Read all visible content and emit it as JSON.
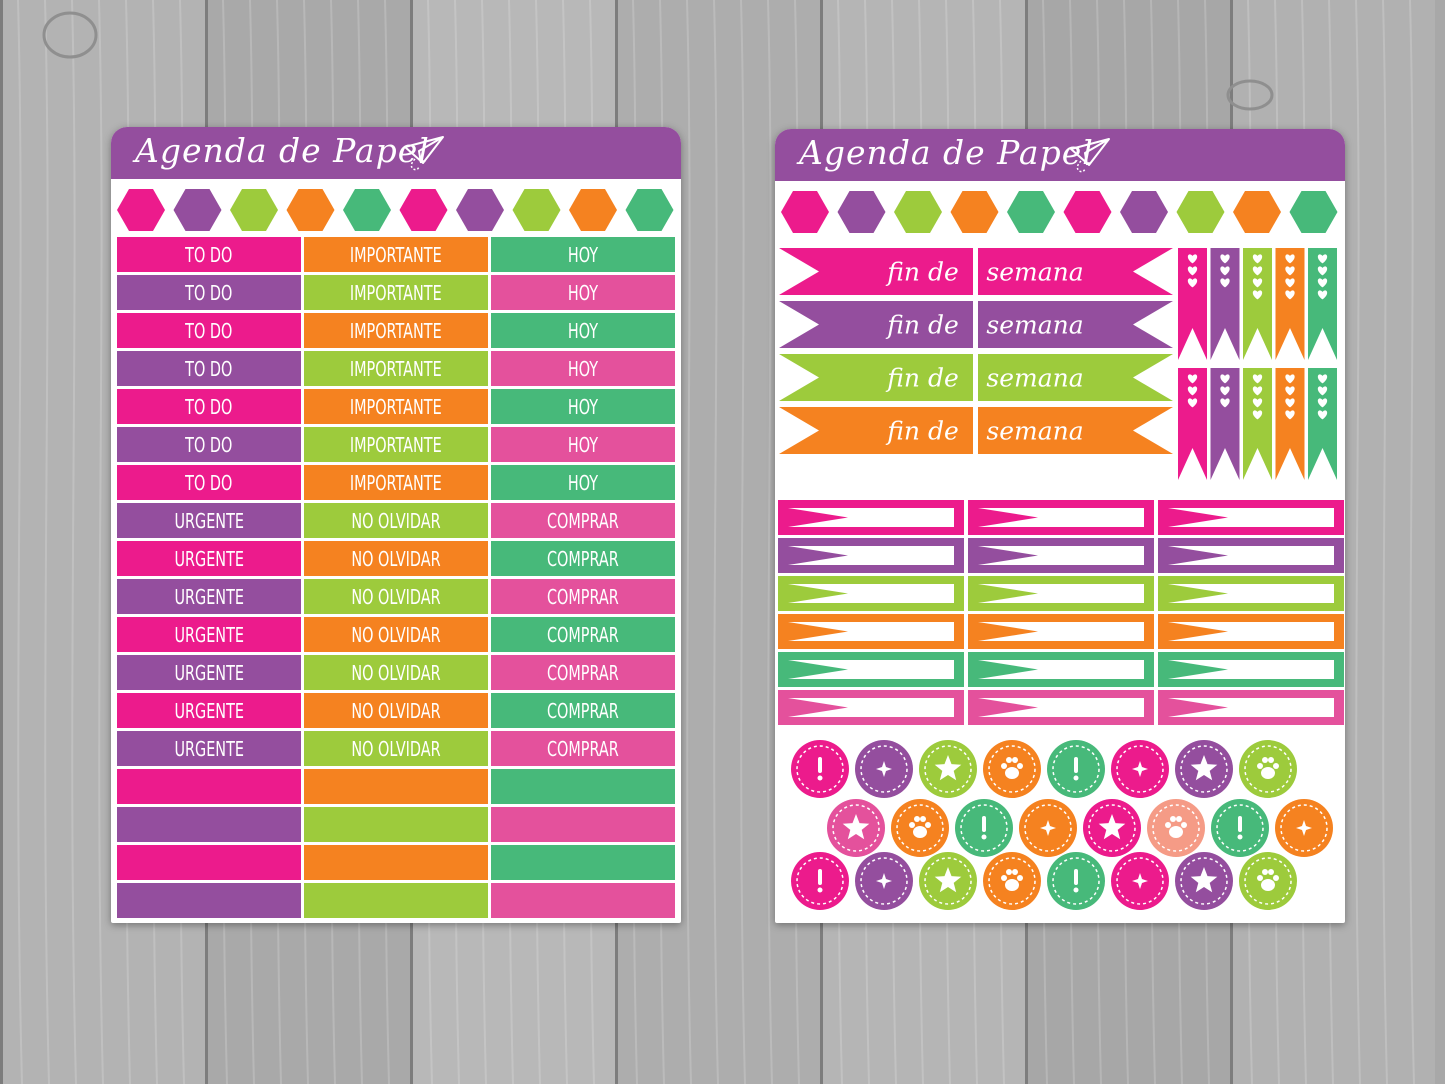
{
  "colors": {
    "pink": "#ec1b8c",
    "purple": "#944e9e",
    "lime": "#9dcb3c",
    "orange": "#f58220",
    "green": "#47b97a",
    "rose": "#e4519c",
    "salmon": "#f59b86",
    "wood": "#a8a8a8"
  },
  "left_sheet": {
    "brand": "Agenda de Papel",
    "brand_icon": "paper-plane-icon",
    "hexagons": [
      "pink",
      "purple",
      "lime",
      "orange",
      "green",
      "pink",
      "purple",
      "lime",
      "orange",
      "green"
    ],
    "rows": [
      {
        "cells": [
          {
            "text": "TO DO",
            "color": "pink"
          },
          {
            "text": "IMPORTANTE",
            "color": "orange"
          },
          {
            "text": "HOY",
            "color": "green"
          }
        ]
      },
      {
        "cells": [
          {
            "text": "TO DO",
            "color": "purple"
          },
          {
            "text": "IMPORTANTE",
            "color": "lime"
          },
          {
            "text": "HOY",
            "color": "rose"
          }
        ]
      },
      {
        "cells": [
          {
            "text": "TO DO",
            "color": "pink"
          },
          {
            "text": "IMPORTANTE",
            "color": "orange"
          },
          {
            "text": "HOY",
            "color": "green"
          }
        ]
      },
      {
        "cells": [
          {
            "text": "TO DO",
            "color": "purple"
          },
          {
            "text": "IMPORTANTE",
            "color": "lime"
          },
          {
            "text": "HOY",
            "color": "rose"
          }
        ]
      },
      {
        "cells": [
          {
            "text": "TO DO",
            "color": "pink"
          },
          {
            "text": "IMPORTANTE",
            "color": "orange"
          },
          {
            "text": "HOY",
            "color": "green"
          }
        ]
      },
      {
        "cells": [
          {
            "text": "TO DO",
            "color": "purple"
          },
          {
            "text": "IMPORTANTE",
            "color": "lime"
          },
          {
            "text": "HOY",
            "color": "rose"
          }
        ]
      },
      {
        "cells": [
          {
            "text": "TO DO",
            "color": "pink"
          },
          {
            "text": "IMPORTANTE",
            "color": "orange"
          },
          {
            "text": "HOY",
            "color": "green"
          }
        ]
      },
      {
        "cells": [
          {
            "text": "URGENTE",
            "color": "purple"
          },
          {
            "text": "NO OLVIDAR",
            "color": "lime"
          },
          {
            "text": "COMPRAR",
            "color": "rose"
          }
        ]
      },
      {
        "cells": [
          {
            "text": "URGENTE",
            "color": "pink"
          },
          {
            "text": "NO OLVIDAR",
            "color": "orange"
          },
          {
            "text": "COMPRAR",
            "color": "green"
          }
        ]
      },
      {
        "cells": [
          {
            "text": "URGENTE",
            "color": "purple"
          },
          {
            "text": "NO OLVIDAR",
            "color": "lime"
          },
          {
            "text": "COMPRAR",
            "color": "rose"
          }
        ]
      },
      {
        "cells": [
          {
            "text": "URGENTE",
            "color": "pink"
          },
          {
            "text": "NO OLVIDAR",
            "color": "orange"
          },
          {
            "text": "COMPRAR",
            "color": "green"
          }
        ]
      },
      {
        "cells": [
          {
            "text": "URGENTE",
            "color": "purple"
          },
          {
            "text": "NO OLVIDAR",
            "color": "lime"
          },
          {
            "text": "COMPRAR",
            "color": "rose"
          }
        ]
      },
      {
        "cells": [
          {
            "text": "URGENTE",
            "color": "pink"
          },
          {
            "text": "NO OLVIDAR",
            "color": "orange"
          },
          {
            "text": "COMPRAR",
            "color": "green"
          }
        ]
      },
      {
        "cells": [
          {
            "text": "URGENTE",
            "color": "purple"
          },
          {
            "text": "NO OLVIDAR",
            "color": "lime"
          },
          {
            "text": "COMPRAR",
            "color": "rose"
          }
        ]
      },
      {
        "cells": [
          {
            "text": "",
            "color": "pink"
          },
          {
            "text": "",
            "color": "orange"
          },
          {
            "text": "",
            "color": "green"
          }
        ]
      },
      {
        "cells": [
          {
            "text": "",
            "color": "purple"
          },
          {
            "text": "",
            "color": "lime"
          },
          {
            "text": "",
            "color": "rose"
          }
        ]
      },
      {
        "cells": [
          {
            "text": "",
            "color": "pink"
          },
          {
            "text": "",
            "color": "orange"
          },
          {
            "text": "",
            "color": "green"
          }
        ]
      },
      {
        "cells": [
          {
            "text": "",
            "color": "purple"
          },
          {
            "text": "",
            "color": "lime"
          },
          {
            "text": "",
            "color": "rose"
          }
        ]
      }
    ]
  },
  "right_sheet": {
    "brand": "Agenda de Papel",
    "brand_icon": "paper-plane-icon",
    "hexagons": [
      "pink",
      "purple",
      "lime",
      "orange",
      "green",
      "pink",
      "purple",
      "lime",
      "orange",
      "green"
    ],
    "weekend_banners": [
      {
        "left": "fin de",
        "right": "semana",
        "color": "pink"
      },
      {
        "left": "fin de",
        "right": "semana",
        "color": "purple"
      },
      {
        "left": "fin de",
        "right": "semana",
        "color": "lime"
      },
      {
        "left": "fin de",
        "right": "semana",
        "color": "orange"
      }
    ],
    "heart_flags": [
      {
        "color": "pink",
        "hearts": 3
      },
      {
        "color": "purple",
        "hearts": 3
      },
      {
        "color": "lime",
        "hearts": 4
      },
      {
        "color": "orange",
        "hearts": 4
      },
      {
        "color": "green",
        "hearts": 4
      },
      {
        "color": "pink",
        "hearts": 3
      },
      {
        "color": "purple",
        "hearts": 3
      },
      {
        "color": "lime",
        "hearts": 4
      },
      {
        "color": "orange",
        "hearts": 4
      },
      {
        "color": "green",
        "hearts": 4
      }
    ],
    "arrow_flag_rows": [
      "pink",
      "purple",
      "lime",
      "orange",
      "green",
      "rose"
    ],
    "circle_rows": [
      [
        {
          "color": "pink",
          "icon": "exclamation-icon"
        },
        {
          "color": "purple",
          "icon": "sparkle-icon"
        },
        {
          "color": "lime",
          "icon": "star-icon"
        },
        {
          "color": "orange",
          "icon": "paw-icon"
        },
        {
          "color": "green",
          "icon": "exclamation-icon"
        },
        {
          "color": "pink",
          "icon": "sparkle-icon"
        },
        {
          "color": "purple",
          "icon": "star-icon"
        },
        {
          "color": "lime",
          "icon": "paw-icon"
        }
      ],
      [
        {
          "color": "rose",
          "icon": "star-icon"
        },
        {
          "color": "orange",
          "icon": "paw-icon"
        },
        {
          "color": "green",
          "icon": "exclamation-icon"
        },
        {
          "color": "orange",
          "icon": "sparkle-icon"
        },
        {
          "color": "pink",
          "icon": "star-icon"
        },
        {
          "color": "salmon",
          "icon": "paw-icon"
        },
        {
          "color": "green",
          "icon": "exclamation-icon"
        },
        {
          "color": "orange",
          "icon": "sparkle-icon"
        }
      ],
      [
        {
          "color": "pink",
          "icon": "exclamation-icon"
        },
        {
          "color": "purple",
          "icon": "sparkle-icon"
        },
        {
          "color": "lime",
          "icon": "star-icon"
        },
        {
          "color": "orange",
          "icon": "paw-icon"
        },
        {
          "color": "green",
          "icon": "exclamation-icon"
        },
        {
          "color": "pink",
          "icon": "sparkle-icon"
        },
        {
          "color": "purple",
          "icon": "star-icon"
        },
        {
          "color": "lime",
          "icon": "paw-icon"
        }
      ]
    ]
  }
}
